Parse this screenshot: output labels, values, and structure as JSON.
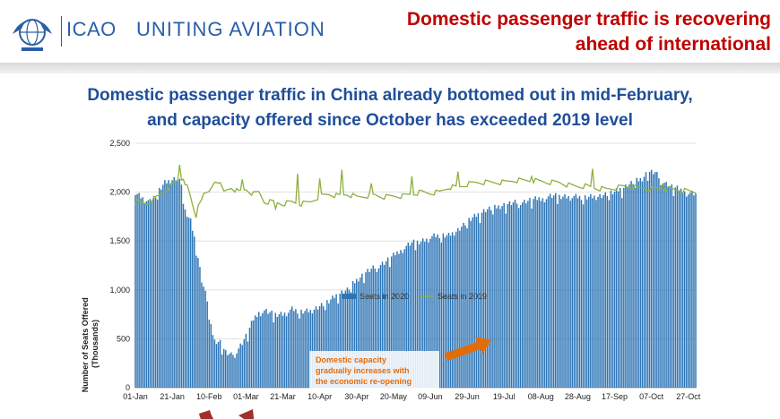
{
  "header": {
    "logo_text": "ICAO",
    "tagline": "UNITING AVIATION",
    "headline_line1": "Domestic passenger traffic is recovering",
    "headline_line2": "ahead of international"
  },
  "subtitle_line1": "Domestic passenger traffic in China already bottomed out in mid-February,",
  "subtitle_line2": "and capacity offered since October has exceeded 2019 level",
  "colors": {
    "bars": "#2e75b6",
    "line": "#8db03e",
    "annotation": "#e36c0a",
    "arrow_red": "#a0312a",
    "arrow_orange": "#e36c0a",
    "headline": "#c00000",
    "subtitle": "#1f4e9a"
  },
  "chart_data": {
    "type": "bar+line",
    "ylabel_line1": "Number of Seats Offered",
    "ylabel_line2": "(Thousands)",
    "ylim": [
      0,
      2500
    ],
    "yticks": [
      "0",
      "500",
      "1,000",
      "1,500",
      "2,000",
      "2,500"
    ],
    "ytick_values": [
      0,
      500,
      1000,
      1500,
      2000,
      2500
    ],
    "xticks": [
      "01-Jan",
      "21-Jan",
      "10-Feb",
      "01-Mar",
      "21-Mar",
      "10-Apr",
      "30-Apr",
      "20-May",
      "09-Jun",
      "29-Jun",
      "19-Jul",
      "08-Aug",
      "28-Aug",
      "17-Sep",
      "07-Oct",
      "27-Oct"
    ],
    "x_start": "01-Jan",
    "x_end": "31-Oct",
    "grid": true,
    "legend_position": "top-center",
    "legend": [
      "Seats in 2020",
      "Seats in 2019"
    ],
    "annotation_lines": [
      "Domestic capacity",
      "gradually increases with",
      "the economic re-opening"
    ],
    "series": [
      {
        "name": "Seats in 2020",
        "type": "bar",
        "anchors": [
          [
            0,
            2000
          ],
          [
            3,
            1960
          ],
          [
            8,
            1900
          ],
          [
            12,
            2000
          ],
          [
            16,
            2100
          ],
          [
            22,
            2150
          ],
          [
            25,
            2100
          ],
          [
            27,
            1800
          ],
          [
            30,
            1700
          ],
          [
            33,
            1450
          ],
          [
            36,
            1100
          ],
          [
            39,
            900
          ],
          [
            41,
            620
          ],
          [
            43,
            480
          ],
          [
            46,
            470
          ],
          [
            49,
            360
          ],
          [
            52,
            330
          ],
          [
            55,
            380
          ],
          [
            58,
            460
          ],
          [
            61,
            560
          ],
          [
            64,
            700
          ],
          [
            67,
            780
          ],
          [
            70,
            790
          ],
          [
            75,
            750
          ],
          [
            80,
            760
          ],
          [
            85,
            800
          ],
          [
            90,
            780
          ],
          [
            95,
            790
          ],
          [
            100,
            840
          ],
          [
            105,
            880
          ],
          [
            110,
            960
          ],
          [
            115,
            1000
          ],
          [
            120,
            1100
          ],
          [
            125,
            1180
          ],
          [
            130,
            1230
          ],
          [
            135,
            1280
          ],
          [
            140,
            1350
          ],
          [
            145,
            1430
          ],
          [
            150,
            1480
          ],
          [
            155,
            1500
          ],
          [
            160,
            1540
          ],
          [
            165,
            1560
          ],
          [
            170,
            1560
          ],
          [
            175,
            1620
          ],
          [
            180,
            1700
          ],
          [
            185,
            1760
          ],
          [
            190,
            1820
          ],
          [
            195,
            1840
          ],
          [
            200,
            1870
          ],
          [
            205,
            1890
          ],
          [
            210,
            1900
          ],
          [
            215,
            1920
          ],
          [
            220,
            1940
          ],
          [
            225,
            1960
          ],
          [
            230,
            1960
          ],
          [
            235,
            1960
          ],
          [
            240,
            1950
          ],
          [
            245,
            1950
          ],
          [
            250,
            1960
          ],
          [
            255,
            1980
          ],
          [
            260,
            2000
          ],
          [
            265,
            2050
          ],
          [
            270,
            2100
          ],
          [
            275,
            2140
          ],
          [
            278,
            2210
          ],
          [
            282,
            2200
          ],
          [
            285,
            2130
          ],
          [
            290,
            2060
          ],
          [
            295,
            2030
          ],
          [
            300,
            2000
          ],
          [
            304,
            1980
          ]
        ]
      },
      {
        "name": "Seats in 2019",
        "type": "line",
        "anchors": [
          [
            0,
            1900
          ],
          [
            6,
            1880
          ],
          [
            12,
            1950
          ],
          [
            18,
            2050
          ],
          [
            22,
            2100
          ],
          [
            26,
            2150
          ],
          [
            29,
            2000
          ],
          [
            32,
            1800
          ],
          [
            36,
            1950
          ],
          [
            40,
            2000
          ],
          [
            44,
            2150
          ],
          [
            48,
            2000
          ],
          [
            52,
            2050
          ],
          [
            56,
            2000
          ],
          [
            60,
            2030
          ],
          [
            64,
            1980
          ],
          [
            67,
            2000
          ],
          [
            70,
            1900
          ],
          [
            75,
            1900
          ],
          [
            80,
            1880
          ],
          [
            85,
            1900
          ],
          [
            90,
            1880
          ],
          [
            95,
            1900
          ],
          [
            100,
            1960
          ],
          [
            105,
            1980
          ],
          [
            110,
            1960
          ],
          [
            115,
            1980
          ],
          [
            120,
            1950
          ],
          [
            125,
            1960
          ],
          [
            130,
            1970
          ],
          [
            135,
            1950
          ],
          [
            140,
            1960
          ],
          [
            145,
            1960
          ],
          [
            150,
            1980
          ],
          [
            155,
            2000
          ],
          [
            160,
            1990
          ],
          [
            165,
            2000
          ],
          [
            170,
            2050
          ],
          [
            175,
            2050
          ],
          [
            180,
            2080
          ],
          [
            185,
            2100
          ],
          [
            190,
            2100
          ],
          [
            195,
            2100
          ],
          [
            200,
            2100
          ],
          [
            205,
            2120
          ],
          [
            210,
            2120
          ],
          [
            215,
            2120
          ],
          [
            220,
            2110
          ],
          [
            225,
            2100
          ],
          [
            230,
            2100
          ],
          [
            235,
            2070
          ],
          [
            240,
            2060
          ],
          [
            245,
            2060
          ],
          [
            250,
            2040
          ],
          [
            255,
            2030
          ],
          [
            260,
            2040
          ],
          [
            265,
            2060
          ],
          [
            270,
            2050
          ],
          [
            275,
            2040
          ],
          [
            280,
            2030
          ],
          [
            285,
            2040
          ],
          [
            290,
            2030
          ],
          [
            295,
            2020
          ],
          [
            300,
            2010
          ],
          [
            304,
            2000
          ]
        ],
        "spikes": [
          [
            24,
            2280
          ],
          [
            33,
            1740
          ],
          [
            44,
            2100
          ],
          [
            58,
            2130
          ],
          [
            76,
            1830
          ],
          [
            88,
            2190
          ],
          [
            100,
            2140
          ],
          [
            112,
            2230
          ],
          [
            128,
            2090
          ],
          [
            150,
            2160
          ],
          [
            175,
            2210
          ],
          [
            215,
            2160
          ],
          [
            248,
            2240
          ],
          [
            286,
            2080
          ]
        ]
      }
    ]
  }
}
